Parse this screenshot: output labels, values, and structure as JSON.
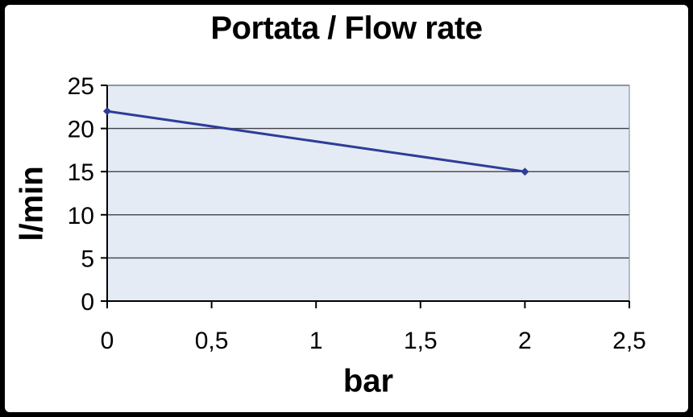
{
  "window": {
    "background": "#ffffff",
    "frame_color": "#000000"
  },
  "chart_data": {
    "type": "line",
    "title": "Portata / Flow rate",
    "xlabel": "bar",
    "ylabel": "l/min",
    "x": [
      0,
      2
    ],
    "values": [
      22,
      15
    ],
    "xlim": [
      0,
      2.5
    ],
    "ylim": [
      0,
      25
    ],
    "x_tick_values": [
      0,
      0.5,
      1,
      1.5,
      2,
      2.5
    ],
    "x_tick_labels": [
      "0",
      "0,5",
      "1",
      "1,5",
      "2",
      "2,5"
    ],
    "y_tick_values": [
      0,
      5,
      10,
      15,
      20,
      25
    ],
    "y_tick_labels": [
      "0",
      "5",
      "10",
      "15",
      "20",
      "25"
    ],
    "grid": "horizontal",
    "legend": "none",
    "marker": "diamond",
    "decimal_separator": ",",
    "colors": {
      "line": "#2e3d98",
      "plot_bg": "#e4ebf4",
      "grid": "#3f3f46",
      "plot_border": "#8a94a3",
      "axis": "#000000",
      "text": "#000000"
    }
  }
}
